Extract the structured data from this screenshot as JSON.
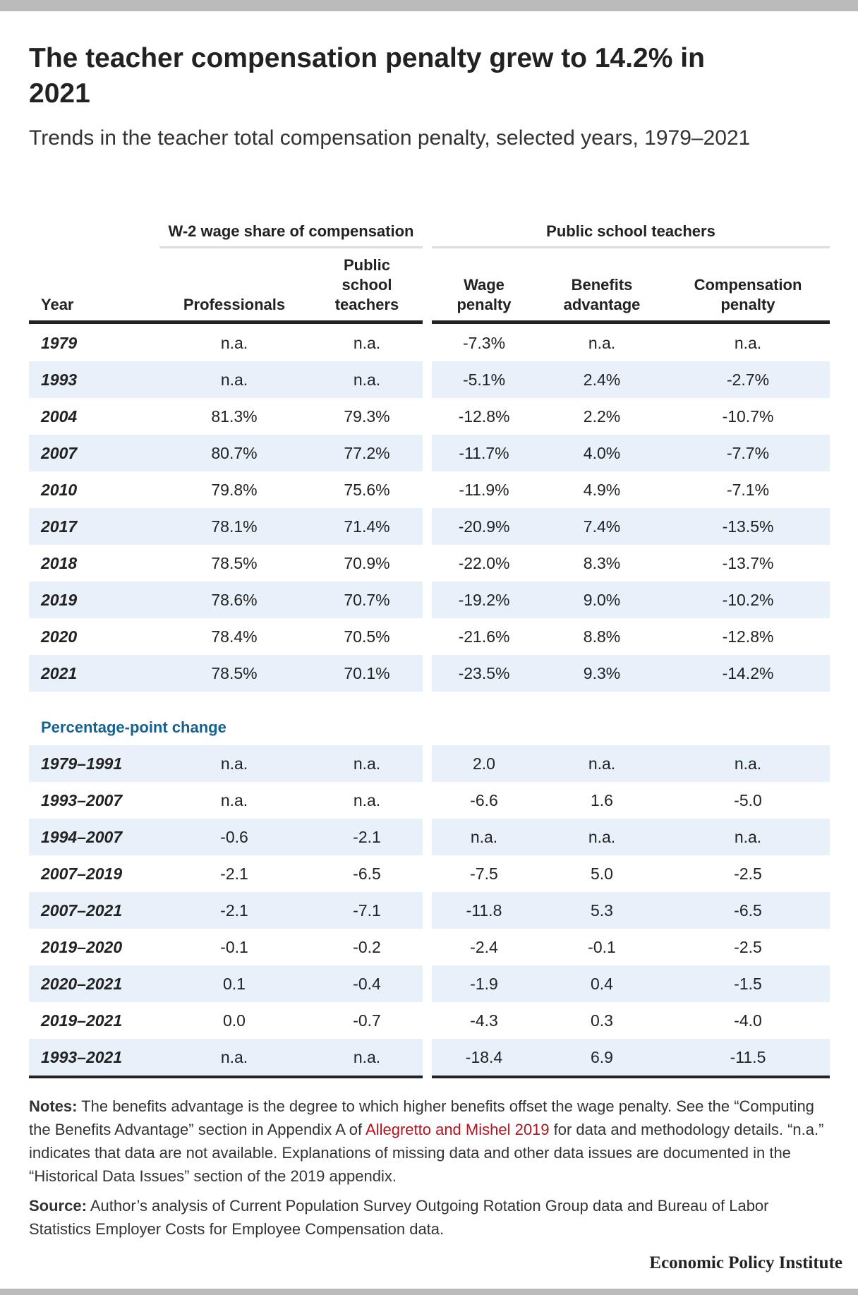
{
  "header": {
    "title": "The teacher compensation penalty grew to 14.2% in 2021",
    "subtitle": "Trends in the teacher total compensation penalty, selected years, 1979–2021"
  },
  "table": {
    "groups": [
      "W-2 wage share of compensation",
      "Public school teachers"
    ],
    "columns": [
      "Year",
      "Professionals",
      "Public school teachers",
      "Wage penalty",
      "Benefits advantage",
      "Compensation penalty"
    ],
    "rows": [
      [
        "1979",
        "n.a.",
        "n.a.",
        "-7.3%",
        "n.a.",
        "n.a."
      ],
      [
        "1993",
        "n.a.",
        "n.a.",
        "-5.1%",
        "2.4%",
        "-2.7%"
      ],
      [
        "2004",
        "81.3%",
        "79.3%",
        "-12.8%",
        "2.2%",
        "-10.7%"
      ],
      [
        "2007",
        "80.7%",
        "77.2%",
        "-11.7%",
        "4.0%",
        "-7.7%"
      ],
      [
        "2010",
        "79.8%",
        "75.6%",
        "-11.9%",
        "4.9%",
        "-7.1%"
      ],
      [
        "2017",
        "78.1%",
        "71.4%",
        "-20.9%",
        "7.4%",
        "-13.5%"
      ],
      [
        "2018",
        "78.5%",
        "70.9%",
        "-22.0%",
        "8.3%",
        "-13.7%"
      ],
      [
        "2019",
        "78.6%",
        "70.7%",
        "-19.2%",
        "9.0%",
        "-10.2%"
      ],
      [
        "2020",
        "78.4%",
        "70.5%",
        "-21.6%",
        "8.8%",
        "-12.8%"
      ],
      [
        "2021",
        "78.5%",
        "70.1%",
        "-23.5%",
        "9.3%",
        "-14.2%"
      ]
    ],
    "change_label": "Percentage-point change",
    "change_rows": [
      [
        "1979–1991",
        "n.a.",
        "n.a.",
        "2.0",
        "n.a.",
        "n.a."
      ],
      [
        "1993–2007",
        "n.a.",
        "n.a.",
        "-6.6",
        "1.6",
        "-5.0"
      ],
      [
        "1994–2007",
        "-0.6",
        "-2.1",
        "n.a.",
        "n.a.",
        "n.a."
      ],
      [
        "2007–2019",
        "-2.1",
        "-6.5",
        "-7.5",
        "5.0",
        "-2.5"
      ],
      [
        "2007–2021",
        "-2.1",
        "-7.1",
        "-11.8",
        "5.3",
        "-6.5"
      ],
      [
        "2019–2020",
        "-0.1",
        "-0.2",
        "-2.4",
        "-0.1",
        "-2.5"
      ],
      [
        "2020–2021",
        "0.1",
        "-0.4",
        "-1.9",
        "0.4",
        "-1.5"
      ],
      [
        "2019–2021",
        "0.0",
        "-0.7",
        "-4.3",
        "0.3",
        "-4.0"
      ],
      [
        "1993–2021",
        "n.a.",
        "n.a.",
        "-18.4",
        "6.9",
        "-11.5"
      ]
    ]
  },
  "notes": {
    "label": "Notes:",
    "text_before": " The benefits advantage is the degree to which higher benefits offset the wage penalty. See the “Computing the Benefits Advantage” section in Appendix A of ",
    "link": "Allegretto and Mishel 2019",
    "text_after": " for data and methodology details. “n.a.” indicates that data are not available. Explanations of missing data and other data issues are documented in the “Historical Data Issues” section of the 2019 appendix."
  },
  "source": {
    "label": "Source:",
    "text": " Author’s analysis of Current Population Survey Outgoing Rotation Group data and Bureau of Labor Statistics Employer Costs for Employee Compensation data."
  },
  "footer": "Economic Policy Institute"
}
